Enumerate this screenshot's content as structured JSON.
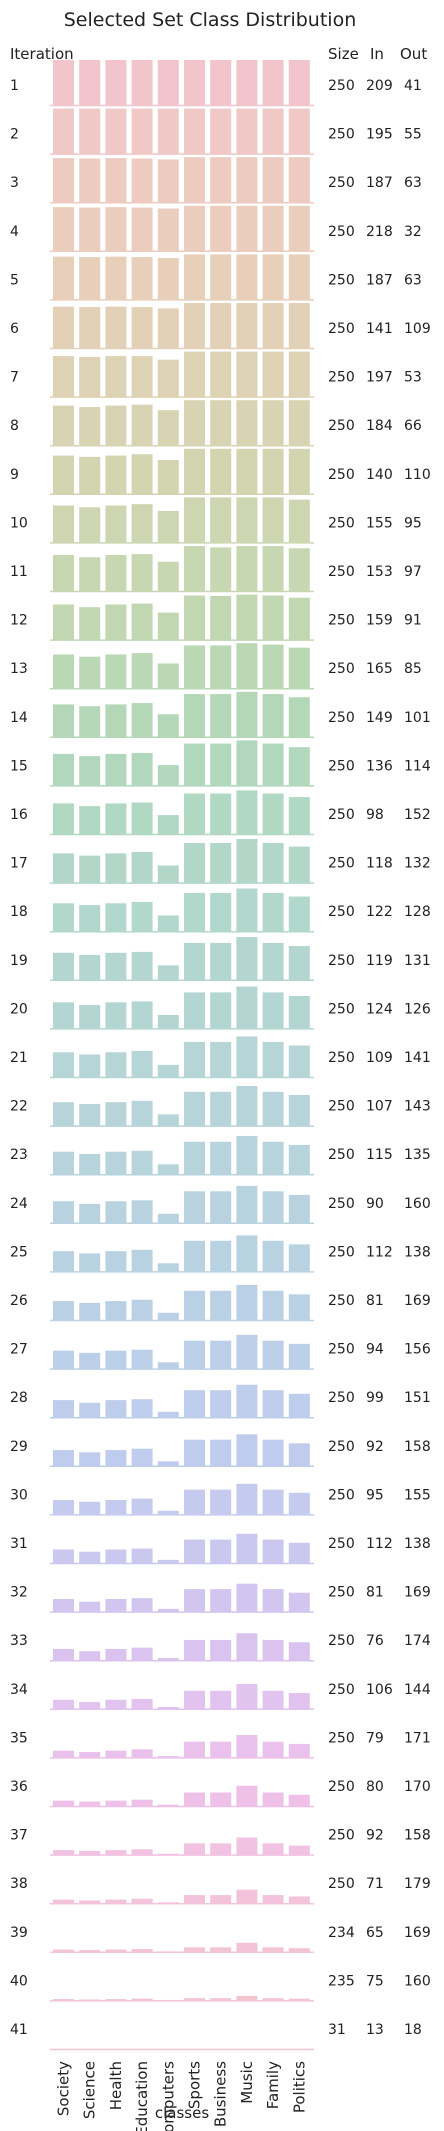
{
  "chart_data": {
    "type": "bar",
    "title": "Selected Set Class Distribution",
    "xlabel": "classes",
    "row_header": "Iteration",
    "column_headers": [
      "Size",
      "In",
      "Out"
    ],
    "categories": [
      "Society",
      "Science",
      "Health",
      "Education",
      "Computers",
      "Sports",
      "Business",
      "Music",
      "Family",
      "Politics"
    ],
    "rows": [
      {
        "iteration": "1",
        "size": "250",
        "in": "209",
        "out": "41",
        "color": "#f2c4cc",
        "values": [
          1.0,
          1.0,
          1.0,
          1.0,
          1.0,
          1.0,
          1.0,
          1.0,
          1.0,
          1.0
        ]
      },
      {
        "iteration": "2",
        "size": "250",
        "in": "195",
        "out": "55",
        "color": "#f0c8c6",
        "values": [
          1.0,
          1.0,
          1.0,
          1.0,
          1.0,
          1.0,
          1.0,
          1.0,
          1.0,
          1.0
        ]
      },
      {
        "iteration": "3",
        "size": "250",
        "in": "187",
        "out": "63",
        "color": "#edcbc0",
        "values": [
          0.98,
          0.97,
          0.98,
          0.97,
          0.95,
          1.0,
          1.0,
          1.0,
          1.0,
          1.0
        ]
      },
      {
        "iteration": "4",
        "size": "250",
        "in": "218",
        "out": "32",
        "color": "#eacdbc",
        "values": [
          0.97,
          0.96,
          0.97,
          0.96,
          0.94,
          1.0,
          1.0,
          1.0,
          1.0,
          1.0
        ]
      },
      {
        "iteration": "5",
        "size": "250",
        "in": "187",
        "out": "63",
        "color": "#e7cfb9",
        "values": [
          0.95,
          0.94,
          0.95,
          0.94,
          0.92,
          1.0,
          1.0,
          1.0,
          1.0,
          1.0
        ]
      },
      {
        "iteration": "6",
        "size": "250",
        "in": "141",
        "out": "109",
        "color": "#e2d1b7",
        "values": [
          0.92,
          0.91,
          0.92,
          0.91,
          0.88,
          1.0,
          1.0,
          1.0,
          1.0,
          1.0
        ]
      },
      {
        "iteration": "7",
        "size": "250",
        "in": "197",
        "out": "53",
        "color": "#ddd3b4",
        "values": [
          0.9,
          0.88,
          0.9,
          0.9,
          0.82,
          1.0,
          1.0,
          1.0,
          1.0,
          1.0
        ]
      },
      {
        "iteration": "8",
        "size": "250",
        "in": "184",
        "out": "66",
        "color": "#d8d4b3",
        "values": [
          0.88,
          0.85,
          0.88,
          0.9,
          0.78,
          1.0,
          1.0,
          1.0,
          1.0,
          1.0
        ]
      },
      {
        "iteration": "9",
        "size": "250",
        "in": "140",
        "out": "110",
        "color": "#d3d5b1",
        "values": [
          0.85,
          0.82,
          0.85,
          0.88,
          0.75,
          1.0,
          1.0,
          1.0,
          1.0,
          1.0
        ]
      },
      {
        "iteration": "10",
        "size": "250",
        "in": "155",
        "out": "95",
        "color": "#cdd6b1",
        "values": [
          0.82,
          0.78,
          0.82,
          0.85,
          0.7,
          1.0,
          1.0,
          1.0,
          1.0,
          0.95
        ]
      },
      {
        "iteration": "11",
        "size": "250",
        "in": "153",
        "out": "97",
        "color": "#c7d7b1",
        "values": [
          0.8,
          0.75,
          0.8,
          0.82,
          0.65,
          1.0,
          0.97,
          1.0,
          1.0,
          0.95
        ]
      },
      {
        "iteration": "12",
        "size": "250",
        "in": "159",
        "out": "91",
        "color": "#c0d7b2",
        "values": [
          0.78,
          0.72,
          0.78,
          0.8,
          0.6,
          0.98,
          0.97,
          1.0,
          0.98,
          0.93
        ]
      },
      {
        "iteration": "13",
        "size": "250",
        "in": "165",
        "out": "85",
        "color": "#bad8b4",
        "values": [
          0.75,
          0.7,
          0.75,
          0.78,
          0.55,
          0.95,
          0.95,
          1.0,
          0.97,
          0.9
        ]
      },
      {
        "iteration": "14",
        "size": "250",
        "in": "149",
        "out": "101",
        "color": "#b4d8b7",
        "values": [
          0.72,
          0.68,
          0.72,
          0.75,
          0.5,
          0.95,
          0.95,
          1.0,
          0.95,
          0.88
        ]
      },
      {
        "iteration": "15",
        "size": "250",
        "in": "136",
        "out": "114",
        "color": "#b1d8bd",
        "values": [
          0.7,
          0.65,
          0.7,
          0.72,
          0.45,
          0.93,
          0.93,
          1.0,
          0.93,
          0.85
        ]
      },
      {
        "iteration": "16",
        "size": "250",
        "in": "98",
        "out": "152",
        "color": "#b1d8c3",
        "values": [
          0.68,
          0.62,
          0.68,
          0.7,
          0.42,
          0.9,
          0.9,
          0.97,
          0.9,
          0.82
        ]
      },
      {
        "iteration": "17",
        "size": "250",
        "in": "118",
        "out": "132",
        "color": "#b2d7c8",
        "values": [
          0.65,
          0.6,
          0.65,
          0.68,
          0.38,
          0.88,
          0.88,
          0.97,
          0.88,
          0.8
        ]
      },
      {
        "iteration": "18",
        "size": "250",
        "in": "122",
        "out": "128",
        "color": "#b2d7cc",
        "values": [
          0.62,
          0.58,
          0.62,
          0.65,
          0.35,
          0.85,
          0.85,
          0.95,
          0.85,
          0.77
        ]
      },
      {
        "iteration": "19",
        "size": "250",
        "in": "119",
        "out": "131",
        "color": "#b3d6d0",
        "values": [
          0.6,
          0.55,
          0.6,
          0.62,
          0.32,
          0.82,
          0.82,
          0.95,
          0.82,
          0.75
        ]
      },
      {
        "iteration": "20",
        "size": "250",
        "in": "124",
        "out": "126",
        "color": "#b4d6d3",
        "values": [
          0.58,
          0.52,
          0.58,
          0.6,
          0.3,
          0.8,
          0.8,
          0.93,
          0.8,
          0.72
        ]
      },
      {
        "iteration": "21",
        "size": "250",
        "in": "109",
        "out": "141",
        "color": "#b5d5d6",
        "values": [
          0.55,
          0.5,
          0.55,
          0.58,
          0.27,
          0.78,
          0.78,
          0.9,
          0.78,
          0.7
        ]
      },
      {
        "iteration": "22",
        "size": "250",
        "in": "107",
        "out": "143",
        "color": "#b6d4d9",
        "values": [
          0.52,
          0.48,
          0.52,
          0.55,
          0.25,
          0.75,
          0.75,
          0.88,
          0.75,
          0.68
        ]
      },
      {
        "iteration": "23",
        "size": "250",
        "in": "115",
        "out": "135",
        "color": "#b7d4dc",
        "values": [
          0.5,
          0.45,
          0.5,
          0.52,
          0.22,
          0.72,
          0.72,
          0.85,
          0.72,
          0.65
        ]
      },
      {
        "iteration": "24",
        "size": "250",
        "in": "90",
        "out": "160",
        "color": "#b8d3df",
        "values": [
          0.48,
          0.42,
          0.48,
          0.5,
          0.2,
          0.7,
          0.7,
          0.82,
          0.7,
          0.62
        ]
      },
      {
        "iteration": "25",
        "size": "250",
        "in": "112",
        "out": "138",
        "color": "#b9d2e2",
        "values": [
          0.45,
          0.4,
          0.45,
          0.48,
          0.18,
          0.68,
          0.68,
          0.8,
          0.68,
          0.6
        ]
      },
      {
        "iteration": "26",
        "size": "250",
        "in": "81",
        "out": "169",
        "color": "#bad1e5",
        "values": [
          0.42,
          0.38,
          0.42,
          0.45,
          0.16,
          0.65,
          0.65,
          0.78,
          0.65,
          0.57
        ]
      },
      {
        "iteration": "27",
        "size": "250",
        "in": "94",
        "out": "156",
        "color": "#bbcfe8",
        "values": [
          0.4,
          0.35,
          0.4,
          0.42,
          0.14,
          0.62,
          0.62,
          0.75,
          0.62,
          0.55
        ]
      },
      {
        "iteration": "28",
        "size": "250",
        "in": "99",
        "out": "151",
        "color": "#bdcdeb",
        "values": [
          0.38,
          0.32,
          0.38,
          0.4,
          0.12,
          0.6,
          0.6,
          0.72,
          0.6,
          0.52
        ]
      },
      {
        "iteration": "29",
        "size": "250",
        "in": "92",
        "out": "158",
        "color": "#c0ccee",
        "values": [
          0.35,
          0.3,
          0.35,
          0.38,
          0.1,
          0.58,
          0.58,
          0.7,
          0.58,
          0.5
        ]
      },
      {
        "iteration": "30",
        "size": "250",
        "in": "95",
        "out": "155",
        "color": "#c5caef",
        "values": [
          0.32,
          0.28,
          0.32,
          0.35,
          0.08,
          0.55,
          0.55,
          0.68,
          0.55,
          0.48
        ]
      },
      {
        "iteration": "31",
        "size": "250",
        "in": "112",
        "out": "138",
        "color": "#cbc8f0",
        "values": [
          0.3,
          0.25,
          0.3,
          0.32,
          0.07,
          0.52,
          0.52,
          0.65,
          0.52,
          0.45
        ]
      },
      {
        "iteration": "32",
        "size": "250",
        "in": "81",
        "out": "169",
        "color": "#d2c6f0",
        "values": [
          0.28,
          0.22,
          0.28,
          0.3,
          0.06,
          0.5,
          0.5,
          0.62,
          0.5,
          0.42
        ]
      },
      {
        "iteration": "33",
        "size": "250",
        "in": "76",
        "out": "174",
        "color": "#dac4ef",
        "values": [
          0.25,
          0.2,
          0.25,
          0.28,
          0.05,
          0.45,
          0.45,
          0.6,
          0.45,
          0.4
        ]
      },
      {
        "iteration": "34",
        "size": "250",
        "in": "106",
        "out": "144",
        "color": "#e2c2ee",
        "values": [
          0.2,
          0.15,
          0.2,
          0.22,
          0.04,
          0.4,
          0.4,
          0.55,
          0.4,
          0.35
        ]
      },
      {
        "iteration": "35",
        "size": "250",
        "in": "79",
        "out": "171",
        "color": "#e9c1ec",
        "values": [
          0.15,
          0.12,
          0.15,
          0.18,
          0.03,
          0.35,
          0.35,
          0.5,
          0.35,
          0.3
        ]
      },
      {
        "iteration": "36",
        "size": "250",
        "in": "80",
        "out": "170",
        "color": "#efc1e8",
        "values": [
          0.12,
          0.1,
          0.12,
          0.14,
          0.03,
          0.3,
          0.3,
          0.45,
          0.3,
          0.25
        ]
      },
      {
        "iteration": "37",
        "size": "250",
        "in": "92",
        "out": "158",
        "color": "#f2c2e3",
        "values": [
          0.1,
          0.08,
          0.1,
          0.12,
          0.02,
          0.25,
          0.25,
          0.38,
          0.25,
          0.2
        ]
      },
      {
        "iteration": "38",
        "size": "250",
        "in": "71",
        "out": "179",
        "color": "#f3c3dc",
        "values": [
          0.08,
          0.06,
          0.08,
          0.1,
          0.02,
          0.18,
          0.18,
          0.3,
          0.18,
          0.15
        ]
      },
      {
        "iteration": "39",
        "size": "234",
        "in": "65",
        "out": "169",
        "color": "#f3c4d6",
        "values": [
          0.05,
          0.04,
          0.05,
          0.06,
          0.01,
          0.1,
          0.1,
          0.2,
          0.1,
          0.08
        ]
      },
      {
        "iteration": "40",
        "size": "235",
        "in": "75",
        "out": "160",
        "color": "#f2c5d0",
        "values": [
          0.03,
          0.02,
          0.03,
          0.04,
          0.01,
          0.05,
          0.05,
          0.1,
          0.05,
          0.04
        ]
      },
      {
        "iteration": "41",
        "size": "31",
        "in": "13",
        "out": "18",
        "color": "#f1c5cc",
        "values": [
          0,
          0,
          0,
          0,
          0,
          0,
          0,
          0,
          0,
          0
        ]
      }
    ]
  }
}
